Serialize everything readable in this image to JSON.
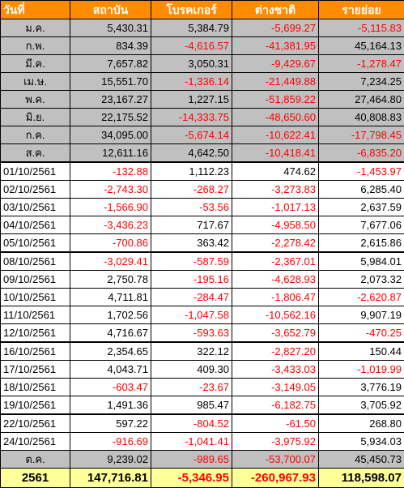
{
  "headers": [
    "วันที่",
    "สถาบัน",
    "โบรคเกอร์",
    "ต่างชาติ",
    "รายย่อย"
  ],
  "month_rows": [
    [
      "ม.ค.",
      "5,430.31",
      "5,384.79",
      "-5,699.27",
      "-5,115.83"
    ],
    [
      "ก.พ.",
      "834.39",
      "-4,616.57",
      "-41,381.95",
      "45,164.13"
    ],
    [
      "มี.ค.",
      "7,657.82",
      "3,050.31",
      "-9,429.67",
      "-1,278.47"
    ],
    [
      "เม.ษ.",
      "15,551.70",
      "-1,336.14",
      "-21,449.88",
      "7,234.25"
    ],
    [
      "พ.ค.",
      "23,167.27",
      "1,227.15",
      "-51,859.22",
      "27,464.80"
    ],
    [
      "มิ.ย.",
      "22,175.52",
      "-14,333.75",
      "-48,650.60",
      "40,808.83"
    ],
    [
      "ก.ค.",
      "34,095.00",
      "-5,674.14",
      "-10,622.41",
      "-17,798.45"
    ],
    [
      "ส.ค.",
      "12,611.16",
      "4,642.50",
      "-10,418.41",
      "-6,835.20"
    ]
  ],
  "day_rows": [
    [
      "01/10/2561",
      "-132.88",
      "1,112.23",
      "474.62",
      "-1,453.97"
    ],
    [
      "02/10/2561",
      "-2,743.30",
      "-268.27",
      "-3,273.83",
      "6,285.40"
    ],
    [
      "03/10/2561",
      "-1,566.90",
      "-53.56",
      "-1,017.13",
      "2,637.59"
    ],
    [
      "04/10/2561",
      "-3,436.23",
      "717.67",
      "-4,958.50",
      "7,677.06"
    ],
    [
      "05/10/2561",
      "-700.86",
      "363.42",
      "-2,278.42",
      "2,615.86"
    ],
    [
      "08/10/2561",
      "-3,029.41",
      "-587.59",
      "-2,367.01",
      "5,984.01"
    ],
    [
      "09/10/2561",
      "2,750.78",
      "-195.16",
      "-4,628.93",
      "2,073.32"
    ],
    [
      "10/10/2561",
      "4,711.81",
      "-284.47",
      "-1,806.47",
      "-2,620.87"
    ],
    [
      "11/10/2561",
      "1,702.56",
      "-1,047.58",
      "-10,562.16",
      "9,907.19"
    ],
    [
      "12/10/2561",
      "4,716.67",
      "-593.63",
      "-3,652.79",
      "-470.25"
    ],
    [
      "16/10/2561",
      "2,354.65",
      "322.12",
      "-2,827.20",
      "150.44"
    ],
    [
      "17/10/2561",
      "4,043.71",
      "409.30",
      "-3,433.03",
      "-1,019.99"
    ],
    [
      "18/10/2561",
      "-603.47",
      "-23.67",
      "-3,149.05",
      "3,776.19"
    ],
    [
      "19/10/2561",
      "1,491.36",
      "985.47",
      "-6,182.75",
      "3,705.92"
    ],
    [
      "22/10/2561",
      "597.22",
      "-804.52",
      "-61.50",
      "268.80"
    ],
    [
      "24/10/2561",
      "-916.69",
      "-1,041.41",
      "-3,975.92",
      "5,934.03"
    ]
  ],
  "gap_after_days": [
    "05/10/2561",
    "12/10/2561",
    "19/10/2561"
  ],
  "summary_row": [
    "ต.ค.",
    "9,239.02",
    "-989.65",
    "-53,700.07",
    "45,450.73"
  ],
  "total_row": [
    "2561",
    "147,716.81",
    "-5,346.95",
    "-260,967.93",
    "118,598.07"
  ],
  "colors": {
    "header_bg": "#ff8c00",
    "month_bg": "#c0c0c0",
    "total_bg": "#ffff99",
    "negative": "#ff0000"
  }
}
